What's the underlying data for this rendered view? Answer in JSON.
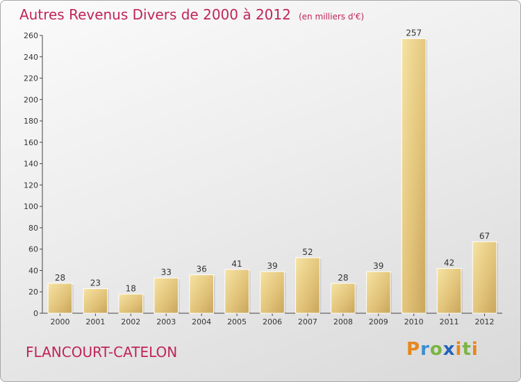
{
  "chart_data": {
    "type": "bar",
    "title": "Autres Revenus Divers de 2000 à 2012",
    "unit": "(en milliers d'€)",
    "categories": [
      "2000",
      "2001",
      "2002",
      "2003",
      "2004",
      "2005",
      "2006",
      "2007",
      "2008",
      "2009",
      "2010",
      "2011",
      "2012"
    ],
    "values": [
      28,
      23,
      18,
      33,
      36,
      41,
      39,
      52,
      28,
      39,
      257,
      42,
      67
    ],
    "ylim": [
      0,
      260
    ],
    "yticks": [
      0,
      20,
      40,
      60,
      80,
      100,
      120,
      140,
      160,
      180,
      200,
      220,
      240,
      260
    ],
    "grid": false,
    "bar_color": "#e3c77d",
    "title_color": "#c0245a"
  },
  "commune": "FLANCOURT-CATELON",
  "logo": {
    "p": "P",
    "r": "r",
    "o": "o",
    "x": "x",
    "i": "i",
    "t": "t",
    "i2": "i"
  }
}
